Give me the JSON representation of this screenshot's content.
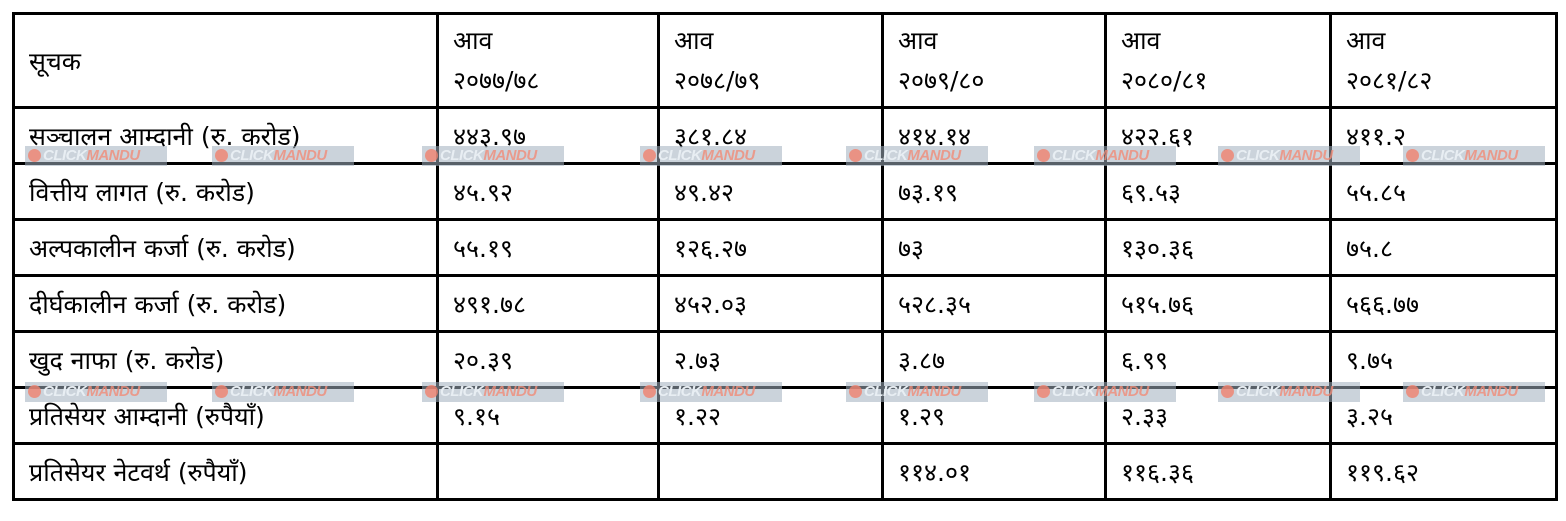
{
  "table": {
    "header": {
      "label": "सूचक",
      "years": [
        {
          "prefix": "आव",
          "year": "२०७७/७८"
        },
        {
          "prefix": "आव",
          "year": "२०७८/७९"
        },
        {
          "prefix": "आव",
          "year": "२०७९/८०"
        },
        {
          "prefix": "आव",
          "year": "२०८०/८१"
        },
        {
          "prefix": "आव",
          "year": "२०८१/८२"
        }
      ]
    },
    "rows": [
      {
        "label": "सञ्चालन आम्दानी (रु. करोड)",
        "values": [
          "४४३.९७",
          "३८१.८४",
          "४१४.१४",
          "४२२.६१",
          "४११.२"
        ]
      },
      {
        "label": "वित्तीय लागत (रु. करोड)",
        "values": [
          "४५.९२",
          "४९.४२",
          "७३.१९",
          "६९.५३",
          "५५.८५"
        ]
      },
      {
        "label": "अल्पकालीन कर्जा (रु. करोड)",
        "values": [
          "५५.१९",
          "१२६.२७",
          "७३",
          "१३०.३६",
          "७५.८"
        ]
      },
      {
        "label": "दीर्घकालीन कर्जा (रु. करोड)",
        "values": [
          "४९१.७८",
          "४५२.०३",
          "५२८.३५",
          "५१५.७६",
          "५६६.७७"
        ]
      },
      {
        "label": "खुद नाफा (रु. करोड)",
        "values": [
          "२०.३९",
          "२.७३",
          "३.८७",
          "६.९९",
          "९.७५"
        ]
      },
      {
        "label": "प्रतिसेयर आम्दानी (रुपैयाँ)",
        "values": [
          "९.१५",
          "१.२२",
          "१.२९",
          "२.३३",
          "३.२५"
        ]
      },
      {
        "label": "प्रतिसेयर नेटवर्थ (रुपैयाँ)",
        "values": [
          "",
          "",
          "११४.०१",
          "११६.३६",
          "११९.६२"
        ]
      }
    ]
  },
  "watermark": {
    "part1": "CLICK",
    "part2": "MANDU"
  }
}
